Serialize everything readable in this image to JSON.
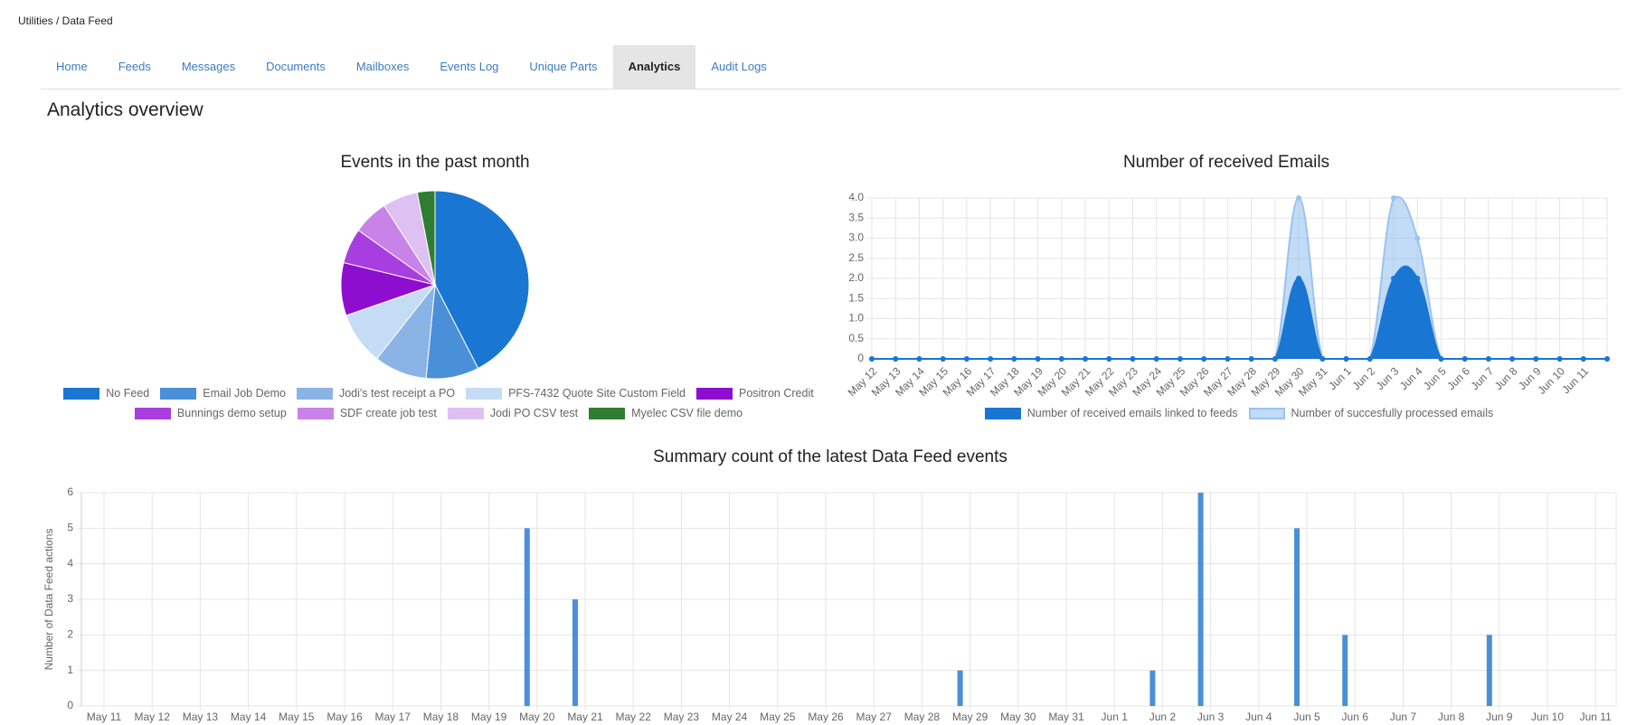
{
  "breadcrumb": "Utilities / Data Feed",
  "nav": {
    "tabs": [
      "Home",
      "Feeds",
      "Messages",
      "Documents",
      "Mailboxes",
      "Events Log",
      "Unique Parts",
      "Analytics",
      "Audit Logs"
    ],
    "active": 7
  },
  "heading": "Analytics overview",
  "chart_data": [
    {
      "type": "pie",
      "title": "Events in the past month",
      "categories": [
        "No Feed",
        "Email Job Demo",
        "Jodi's test receipt a PO",
        "PFS-7432 Quote Site Custom Field",
        "Positron Credit",
        "Bunnings demo setup",
        "SDF create job test",
        "Jodi PO CSV test",
        "Myelec CSV file demo"
      ],
      "values": [
        14,
        3,
        3,
        3,
        3,
        2,
        2,
        2,
        1
      ],
      "colors": [
        "#1976d2",
        "#4a90d9",
        "#8ab4e6",
        "#c5dcf5",
        "#8e0ecf",
        "#a93ee0",
        "#c882e8",
        "#dfc0f2",
        "#2e7d32"
      ],
      "legend": "bottom"
    },
    {
      "type": "area",
      "title": "Number of received Emails",
      "categories": [
        "May 12",
        "May 13",
        "May 14",
        "May 15",
        "May 16",
        "May 17",
        "May 18",
        "May 19",
        "May 20",
        "May 21",
        "May 22",
        "May 23",
        "May 24",
        "May 25",
        "May 26",
        "May 27",
        "May 28",
        "May 29",
        "May 30",
        "May 31",
        "Jun 1",
        "Jun 2",
        "Jun 3",
        "Jun 4",
        "Jun 5",
        "Jun 6",
        "Jun 7",
        "Jun 8",
        "Jun 9",
        "Jun 10",
        "Jun 11",
        null
      ],
      "series": [
        {
          "name": "Number of succesfully processed emails",
          "color": "#9cc3ee",
          "fill": "rgba(144,190,240,0.55)",
          "values": [
            0,
            0,
            0,
            0,
            0,
            0,
            0,
            0,
            0,
            0,
            0,
            0,
            0,
            0,
            0,
            0,
            0,
            0,
            4,
            0,
            0,
            0,
            4,
            3,
            0,
            0,
            0,
            0,
            0,
            0,
            0,
            0
          ]
        },
        {
          "name": "Number of received emails linked to feeds",
          "color": "#1976d2",
          "fill": "#1976d2",
          "values": [
            0,
            0,
            0,
            0,
            0,
            0,
            0,
            0,
            0,
            0,
            0,
            0,
            0,
            0,
            0,
            0,
            0,
            0,
            2,
            0,
            0,
            0,
            2,
            2,
            0,
            0,
            0,
            0,
            0,
            0,
            0,
            0
          ]
        }
      ],
      "legend_order": [
        1,
        0
      ],
      "ylim": [
        0,
        4
      ],
      "yticks": [
        0,
        0.5,
        {
          "value": 1,
          "label": "1.0"
        },
        1.5,
        {
          "value": 2,
          "label": "2.0"
        },
        2.5,
        {
          "value": 3,
          "label": "3.0"
        },
        3.5,
        {
          "value": 4,
          "label": "4.0"
        }
      ],
      "grid": true,
      "legend": "bottom"
    },
    {
      "type": "bar",
      "title": "Summary count of the latest Data Feed events",
      "ylabel": "Number of Data Feed actions",
      "categories": [
        "May 11",
        "May 12",
        "May 13",
        "May 14",
        "May 15",
        "May 16",
        "May 17",
        "May 18",
        "May 19",
        "May 20",
        "May 21",
        "May 22",
        "May 23",
        "May 24",
        "May 25",
        "May 26",
        "May 27",
        "May 28",
        "May 29",
        "May 30",
        "May 31",
        "Jun 1",
        "Jun 2",
        "Jun 3",
        "Jun 4",
        "Jun 5",
        "Jun 6",
        "Jun 7",
        "Jun 8",
        "Jun 9",
        "Jun 10",
        "Jun 11"
      ],
      "values": [
        0,
        0,
        0,
        0,
        0,
        0,
        0,
        0,
        0,
        5,
        3,
        0,
        0,
        0,
        0,
        0,
        0,
        0,
        1,
        0,
        0,
        0,
        1,
        6,
        0,
        5,
        2,
        0,
        0,
        2,
        0,
        0
      ],
      "color": "#4a90d9",
      "ylim": [
        0,
        6
      ],
      "yticks": [
        0,
        1,
        2,
        3,
        4,
        5,
        6
      ],
      "grid": true
    }
  ]
}
